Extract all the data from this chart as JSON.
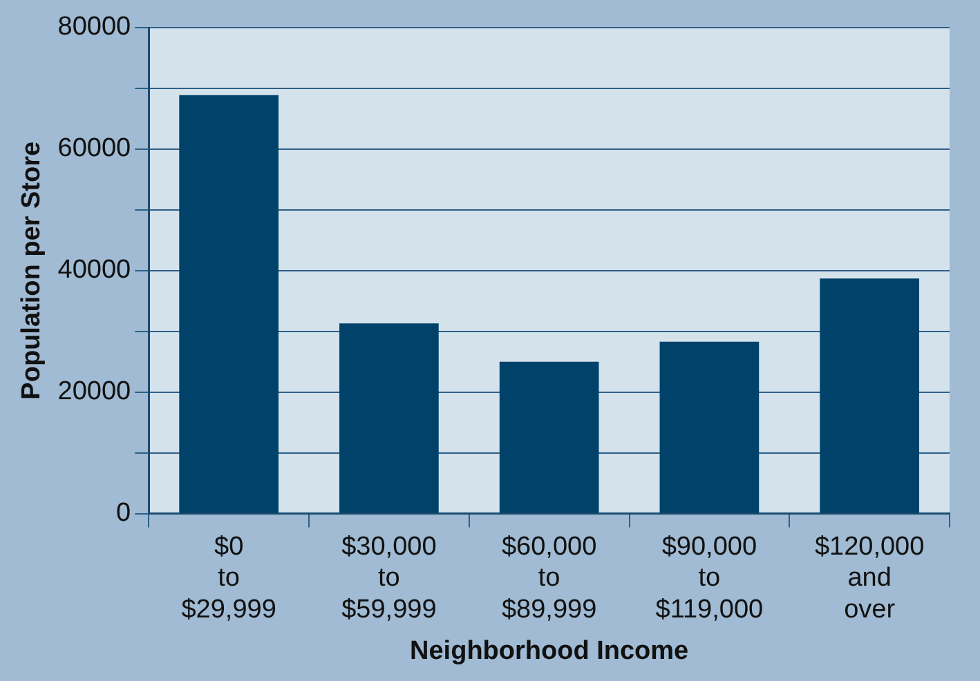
{
  "chart_data": {
    "type": "bar",
    "xlabel": "Neighborhood Income",
    "ylabel": "Population per Store",
    "categories": [
      "$0\nto\n$29,999",
      "$30,000\nto\n$59,999",
      "$60,000\nto\n$89,999",
      "$90,000\nto\n$119,000",
      "$120,000\nand\nover"
    ],
    "values": [
      68900,
      31300,
      25000,
      28300,
      38700
    ],
    "color": "#00426a",
    "ylim": [
      0,
      80000
    ],
    "yticks": [
      0,
      {
        "value": 10000,
        "label": null
      },
      20000,
      {
        "value": 30000,
        "label": null
      },
      40000,
      {
        "value": 50000,
        "label": null
      },
      60000,
      {
        "value": 70000,
        "label": null
      },
      80000
    ],
    "grid": "y",
    "legend": false
  }
}
